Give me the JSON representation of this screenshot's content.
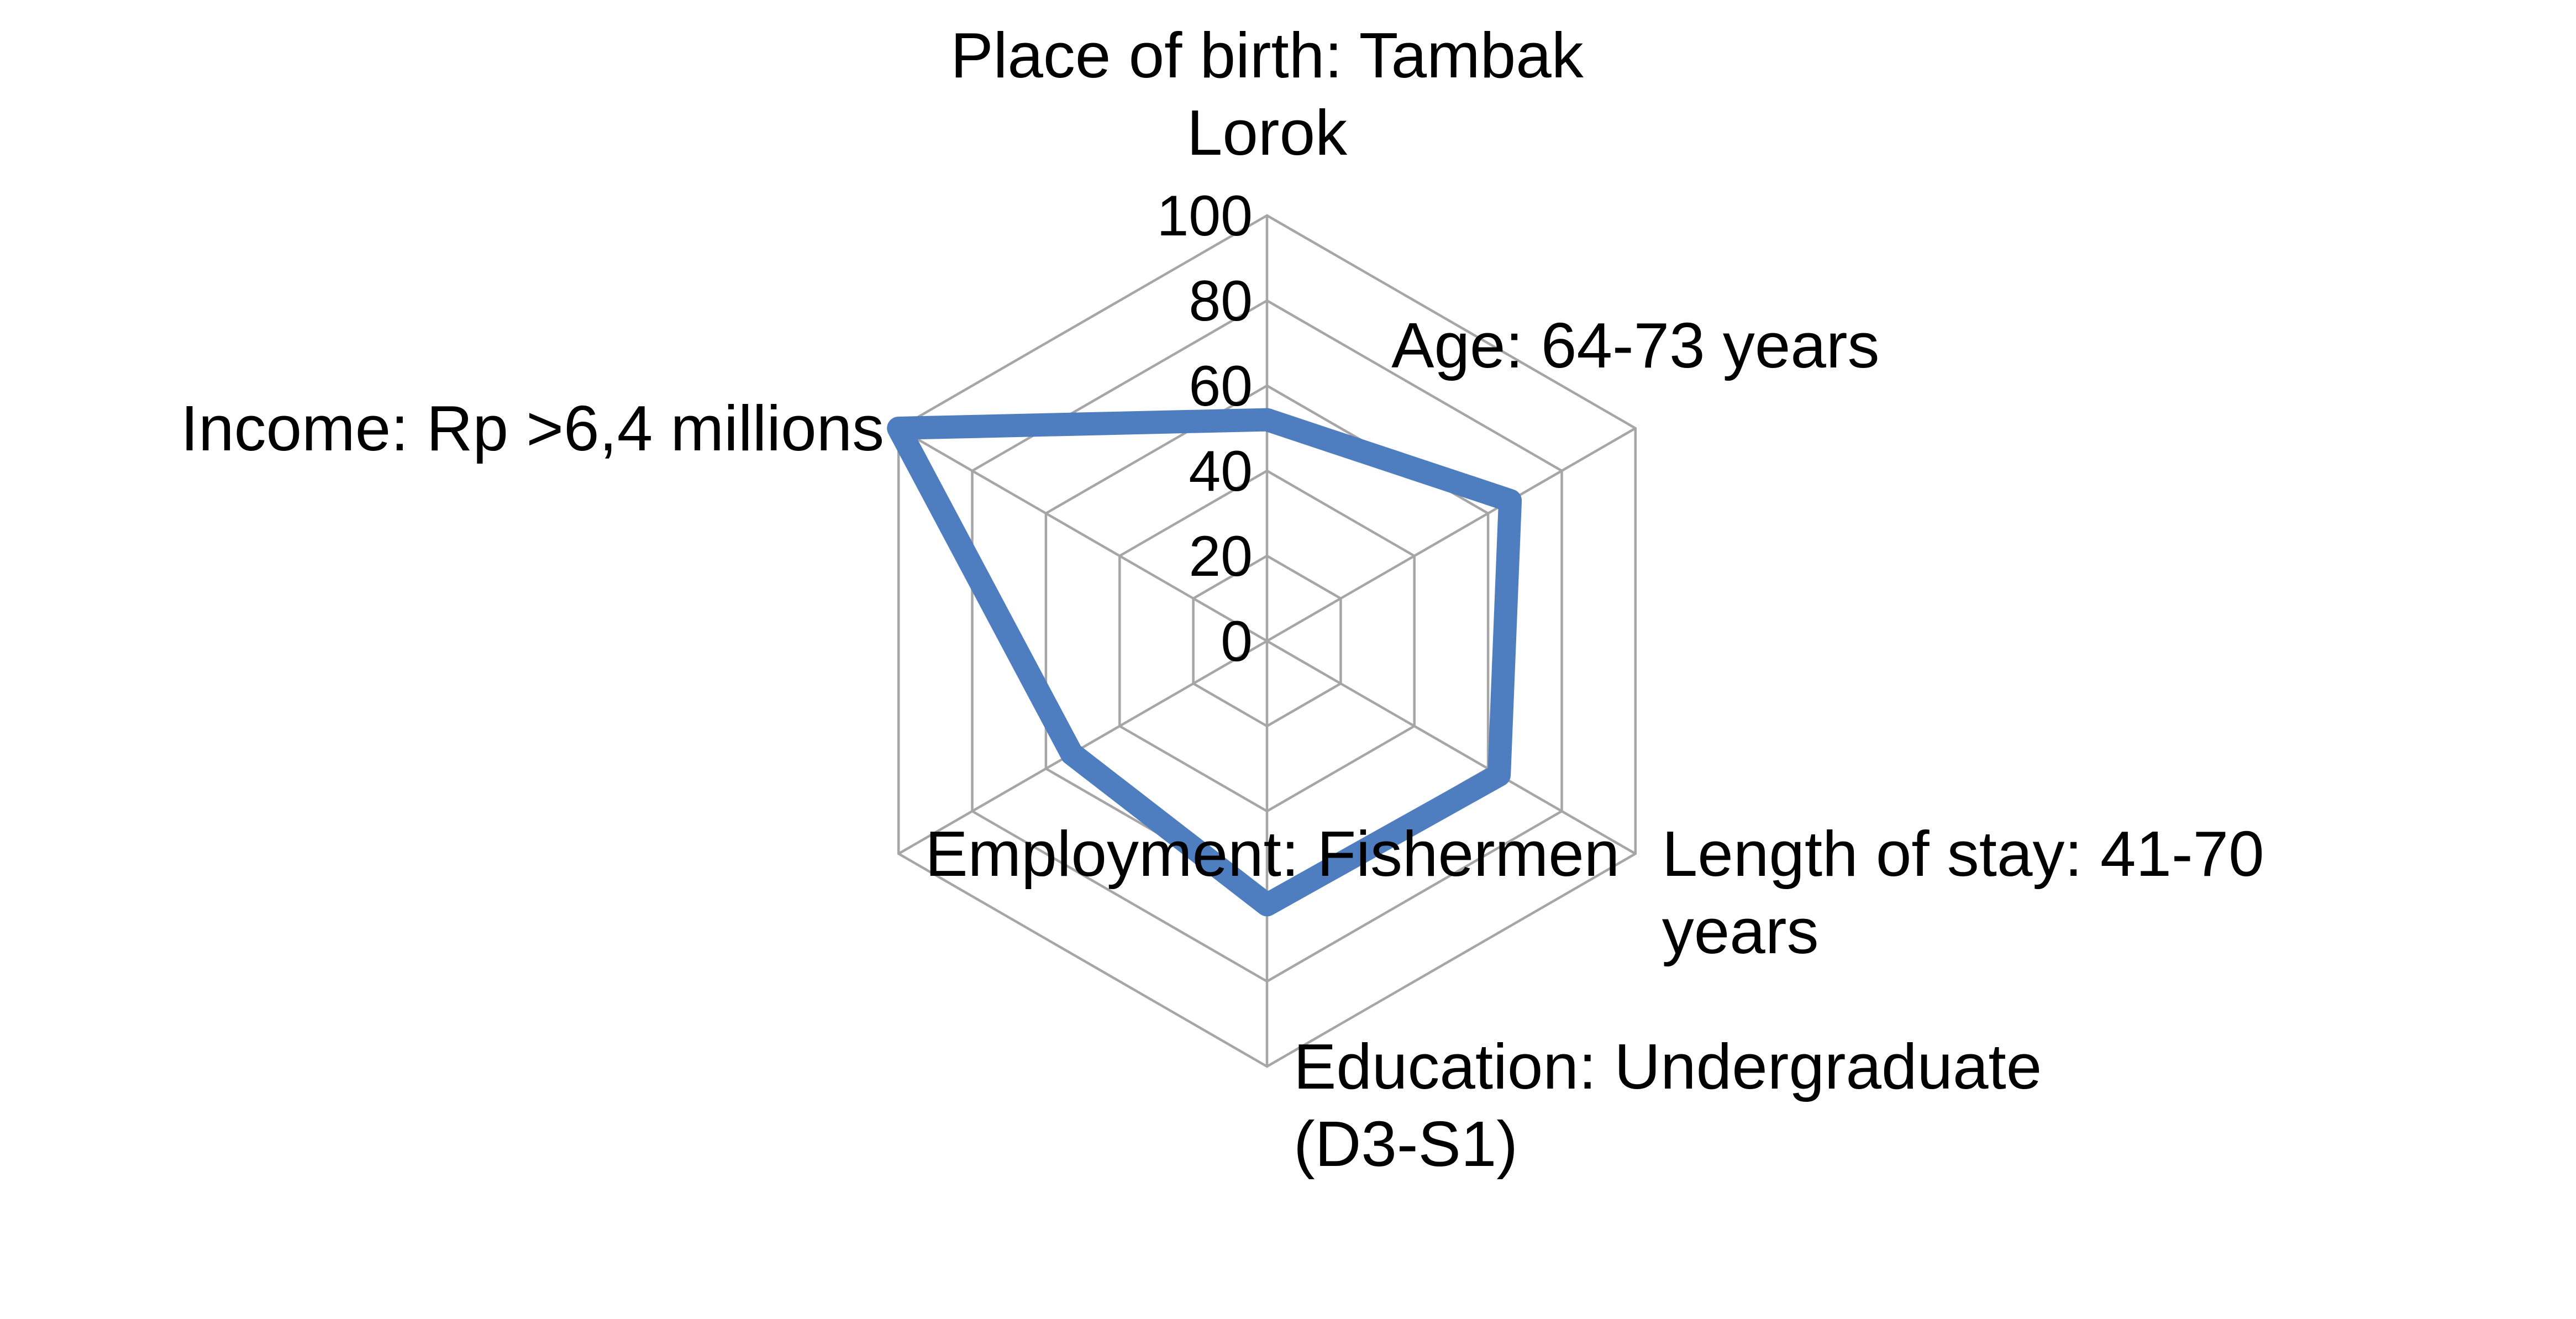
{
  "chart_data": {
    "type": "radar",
    "title": "",
    "categories": [
      [
        "Place of birth: Tambak",
        "Lorok"
      ],
      [
        "Age: 64-73 years"
      ],
      [
        "Length of stay: 41-70",
        "years"
      ],
      [
        "Education: Undergraduate",
        "(D3-S1)"
      ],
      [
        "Employment: Fishermen"
      ],
      [
        "Income: Rp >6,4 millions"
      ]
    ],
    "series": [
      {
        "values": [
          52,
          66,
          63,
          62,
          53,
          100
        ],
        "color": "#4f7ec0"
      }
    ],
    "rlim": [
      0,
      100
    ],
    "ticks": [
      "0",
      "20",
      "40",
      "60",
      "80",
      "100"
    ],
    "grid_color": "#a6a6a6",
    "legend": "none"
  }
}
